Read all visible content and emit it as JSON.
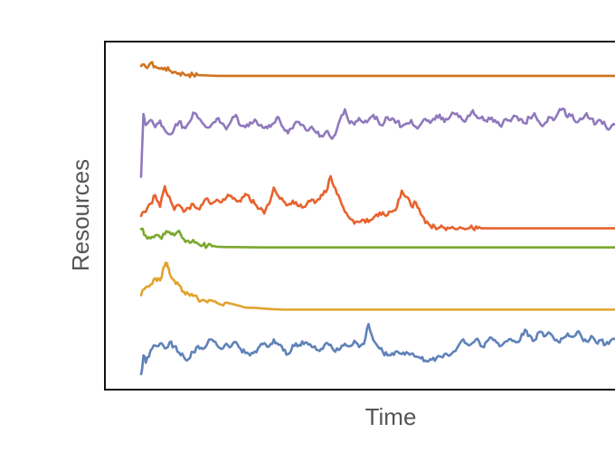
{
  "chart_data": {
    "type": "line",
    "title": "",
    "xlabel": "Time",
    "ylabel": "Resources",
    "grid": false,
    "legend": "none",
    "xlim": [
      0,
      100
    ],
    "ylim": [
      0,
      100
    ],
    "series": [
      {
        "color": "#d0731f",
        "x": [
          0,
          1,
          2,
          3,
          4,
          5,
          6,
          7,
          8,
          9,
          10,
          11,
          12,
          14,
          16,
          20,
          30,
          40,
          60,
          80,
          100
        ],
        "values": [
          95.1,
          94.8,
          96.0,
          95.0,
          94.3,
          94.6,
          93.8,
          93.4,
          93.0,
          92.8,
          92.6,
          92.5,
          92.4,
          92.3,
          92.2,
          92.2,
          92.2,
          92.2,
          92.2,
          92.2,
          92.2
        ]
      },
      {
        "color": "#9079bd",
        "x": [
          0,
          0.5,
          1,
          2,
          3,
          4,
          5,
          6,
          7,
          8,
          9,
          10,
          11,
          12,
          13,
          14,
          15,
          16,
          17,
          18,
          19,
          20,
          21,
          22,
          23,
          24,
          25,
          26,
          27,
          28,
          29,
          30,
          31,
          32,
          33,
          34,
          35,
          36,
          37,
          38,
          39,
          40,
          41,
          42,
          43,
          44,
          45,
          46,
          47,
          48,
          49,
          50,
          51,
          52,
          53,
          54,
          55,
          56,
          57,
          58,
          59,
          60,
          61,
          62,
          63,
          64,
          65,
          66,
          67,
          68,
          69,
          70,
          71,
          72,
          73,
          74,
          75,
          76,
          77,
          78,
          79,
          80,
          81,
          82,
          83,
          84,
          85,
          86,
          87,
          88,
          89,
          90,
          91,
          92,
          93,
          94,
          95,
          96,
          97,
          98,
          99,
          100
        ],
        "values": [
          62.0,
          80.8,
          77.5,
          79.0,
          76.8,
          78.8,
          76.0,
          74.7,
          76.5,
          78.5,
          76.9,
          78.0,
          81.2,
          79.6,
          78.0,
          76.7,
          77.9,
          79.4,
          78.0,
          76.2,
          78.7,
          80.5,
          77.3,
          76.8,
          78.3,
          79.1,
          77.3,
          76.6,
          77.5,
          78.0,
          79.8,
          76.7,
          75.0,
          76.5,
          78.4,
          77.6,
          75.8,
          77.0,
          75.1,
          74.3,
          75.5,
          73.8,
          74.7,
          79.2,
          82.2,
          78.0,
          77.6,
          79.6,
          78.2,
          79.0,
          80.5,
          78.8,
          77.4,
          79.8,
          79.5,
          78.5,
          77.0,
          78.0,
          79.0,
          76.9,
          77.7,
          79.3,
          78.1,
          79.1,
          80.6,
          78.4,
          79.5,
          81.0,
          79.9,
          78.7,
          80.3,
          81.9,
          79.6,
          80.0,
          78.5,
          79.7,
          78.2,
          77.0,
          79.3,
          78.6,
          80.1,
          79.3,
          78.0,
          79.7,
          81.0,
          78.4,
          77.6,
          79.9,
          78.9,
          81.1,
          82.4,
          79.8,
          80.6,
          78.3,
          79.2,
          81.0,
          79.4,
          77.9,
          78.8,
          77.3,
          76.6,
          77.6
        ]
      },
      {
        "color": "#e8622d",
        "x": [
          0,
          1,
          2,
          3,
          4,
          5,
          6,
          7,
          8,
          9,
          10,
          11,
          12,
          13,
          14,
          15,
          16,
          17,
          18,
          19,
          20,
          21,
          22,
          23,
          24,
          25,
          26,
          27,
          28,
          29,
          30,
          31,
          32,
          33,
          34,
          35,
          36,
          37,
          38,
          39,
          40,
          41,
          42,
          43,
          44,
          45,
          46,
          47,
          48,
          49,
          50,
          51,
          52,
          53,
          54,
          55,
          56,
          57,
          58,
          59,
          60,
          61,
          62,
          63,
          64,
          65,
          66,
          67,
          68,
          69,
          70,
          71,
          72,
          75,
          80,
          90,
          100
        ],
        "values": [
          50.3,
          51.5,
          54.0,
          56.5,
          53.0,
          59.2,
          56.0,
          52.1,
          53.6,
          51.5,
          52.7,
          53.9,
          52.5,
          53.8,
          55.5,
          54.1,
          55.2,
          54.4,
          55.8,
          56.3,
          55.0,
          54.6,
          56.9,
          55.1,
          53.9,
          52.4,
          51.0,
          53.8,
          58.8,
          56.1,
          54.8,
          53.6,
          54.9,
          53.4,
          52.8,
          54.0,
          55.2,
          54.7,
          56.6,
          57.4,
          62.2,
          58.6,
          55.2,
          51.5,
          49.6,
          48.0,
          48.5,
          49.1,
          48.5,
          49.7,
          50.2,
          51.4,
          50.6,
          51.6,
          53.0,
          57.9,
          56.0,
          53.3,
          54.3,
          50.9,
          48.2,
          47.5,
          47.0,
          46.8,
          46.7,
          46.6,
          46.6,
          46.6,
          46.6,
          46.6,
          46.6,
          46.6,
          46.6,
          46.6,
          46.6,
          46.6,
          46.6
        ]
      },
      {
        "color": "#7aa82e",
        "x": [
          0,
          1,
          2,
          3,
          4,
          5,
          6,
          7,
          8,
          9,
          10,
          11,
          12,
          13,
          14,
          15,
          16,
          18,
          20,
          25,
          30,
          40,
          60,
          80,
          100
        ],
        "values": [
          46.4,
          44.4,
          43.6,
          44.5,
          44.0,
          44.8,
          45.5,
          44.5,
          45.9,
          43.4,
          42.8,
          43.1,
          42.0,
          41.5,
          41.4,
          41.2,
          41.1,
          41.0,
          41.0,
          40.9,
          40.9,
          40.9,
          40.9,
          40.9,
          40.9
        ]
      },
      {
        "color": "#e2a32c",
        "x": [
          0,
          1,
          2,
          3,
          4,
          5,
          5.5,
          6,
          7,
          8,
          9,
          10,
          11,
          12,
          13,
          14,
          15,
          16,
          17,
          18,
          20,
          22,
          24,
          26,
          28,
          30,
          35,
          40,
          60,
          80,
          100
        ],
        "values": [
          26.6,
          29.0,
          29.8,
          31.7,
          31.0,
          35.5,
          36.2,
          33.2,
          31.0,
          29.6,
          27.7,
          27.0,
          26.4,
          25.4,
          25.2,
          24.5,
          25.0,
          24.3,
          23.8,
          24.4,
          23.7,
          22.9,
          22.8,
          22.6,
          22.4,
          22.3,
          22.3,
          22.3,
          22.3,
          22.3,
          22.3
        ]
      },
      {
        "color": "#5f82b9",
        "x": [
          0,
          0.5,
          1,
          2,
          3,
          4,
          5,
          6,
          7,
          8,
          9,
          10,
          11,
          12,
          13,
          14,
          15,
          16,
          17,
          18,
          19,
          20,
          21,
          22,
          23,
          24,
          25,
          26,
          27,
          28,
          29,
          30,
          31,
          32,
          33,
          34,
          35,
          36,
          37,
          38,
          39,
          40,
          41,
          42,
          43,
          44,
          45,
          46,
          47,
          48,
          49,
          50,
          51,
          52,
          53,
          54,
          55,
          56,
          57,
          58,
          59,
          60,
          61,
          62,
          63,
          64,
          65,
          66,
          67,
          68,
          69,
          70,
          71,
          72,
          73,
          74,
          75,
          76,
          77,
          78,
          79,
          80,
          81,
          82,
          83,
          84,
          85,
          86,
          87,
          88,
          89,
          90,
          91,
          92,
          93,
          94,
          95,
          96,
          97,
          98,
          99,
          100
        ],
        "values": [
          3.0,
          8.6,
          6.4,
          10.1,
          11.5,
          12.2,
          10.7,
          12.5,
          11.3,
          9.5,
          8.2,
          7.5,
          9.6,
          11.4,
          10.5,
          12.2,
          13.3,
          11.7,
          10.5,
          12.1,
          11.3,
          12.6,
          10.6,
          9.3,
          8.6,
          9.8,
          11.3,
          12.3,
          11.3,
          13.4,
          11.8,
          10.1,
          9.0,
          11.7,
          11.3,
          12.8,
          12.4,
          11.2,
          10.3,
          10.6,
          12.3,
          11.8,
          9.7,
          10.5,
          12.1,
          11.3,
          13.0,
          11.1,
          12.0,
          18.0,
          13.2,
          11.2,
          9.7,
          8.6,
          9.3,
          9.8,
          9.0,
          9.6,
          9.1,
          8.2,
          7.7,
          7.1,
          7.5,
          7.0,
          8.3,
          9.0,
          8.5,
          9.8,
          11.6,
          13.4,
          11.7,
          12.4,
          13.6,
          11.3,
          12.8,
          13.8,
          12.5,
          11.5,
          12.8,
          13.5,
          12.6,
          13.3,
          16.3,
          14.6,
          13.1,
          15.6,
          14.3,
          15.5,
          13.9,
          12.7,
          13.7,
          15.2,
          14.1,
          15.6,
          14.0,
          12.8,
          14.4,
          12.5,
          13.2,
          11.8,
          12.9,
          13.5
        ]
      }
    ]
  }
}
